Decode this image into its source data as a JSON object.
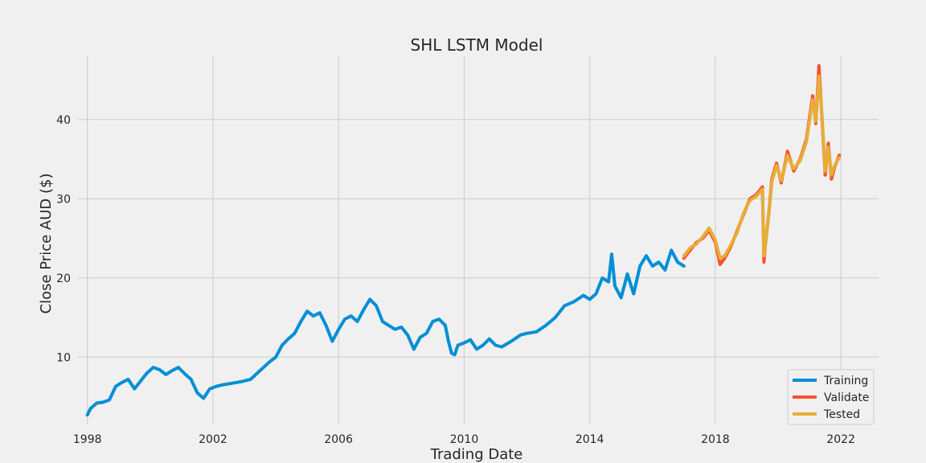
{
  "chart_data": {
    "type": "line",
    "title": "SHL LSTM Model",
    "xlabel": "Trading Date",
    "ylabel": "Close Price AUD ($)",
    "xlim": [
      1997.7,
      2023.2
    ],
    "ylim": [
      1.5,
      48.0
    ],
    "x_ticks": [
      1998,
      2002,
      2006,
      2010,
      2014,
      2018,
      2022
    ],
    "y_ticks": [
      10,
      20,
      30,
      40
    ],
    "grid": true,
    "legend": {
      "position": "bottom-right",
      "entries": [
        "Training",
        "Validate",
        "Tested"
      ]
    },
    "colors": {
      "Training": "#008fd5",
      "Validate": "#fc4f30",
      "Tested": "#e5ae38",
      "background": "#f0f0f0",
      "grid": "#cbcbcb"
    },
    "series": [
      {
        "name": "Training",
        "x": [
          1998.0,
          1998.1,
          1998.3,
          1998.5,
          1998.7,
          1998.9,
          1999.1,
          1999.3,
          1999.5,
          1999.7,
          1999.9,
          2000.1,
          2000.3,
          2000.5,
          2000.7,
          2000.9,
          2001.1,
          2001.3,
          2001.5,
          2001.7,
          2001.9,
          2002.1,
          2002.3,
          2002.6,
          2002.9,
          2003.2,
          2003.5,
          2003.8,
          2004.0,
          2004.2,
          2004.4,
          2004.6,
          2004.8,
          2005.0,
          2005.2,
          2005.4,
          2005.6,
          2005.8,
          2006.0,
          2006.2,
          2006.4,
          2006.6,
          2006.8,
          2007.0,
          2007.2,
          2007.4,
          2007.6,
          2007.8,
          2008.0,
          2008.2,
          2008.4,
          2008.6,
          2008.8,
          2009.0,
          2009.2,
          2009.4,
          2009.5,
          2009.6,
          2009.7,
          2009.8,
          2010.0,
          2010.2,
          2010.4,
          2010.6,
          2010.8,
          2011.0,
          2011.2,
          2011.5,
          2011.8,
          2012.0,
          2012.3,
          2012.6,
          2012.9,
          2013.2,
          2013.5,
          2013.8,
          2014.0,
          2014.2,
          2014.4,
          2014.6,
          2014.7,
          2014.8,
          2015.0,
          2015.2,
          2015.4,
          2015.6,
          2015.8,
          2016.0,
          2016.2,
          2016.4,
          2016.6,
          2016.8,
          2017.0
        ],
        "values": [
          2.7,
          3.5,
          4.2,
          4.3,
          4.6,
          6.3,
          6.8,
          7.2,
          6.0,
          7.0,
          8.0,
          8.7,
          8.4,
          7.8,
          8.3,
          8.7,
          7.9,
          7.2,
          5.5,
          4.8,
          6.0,
          6.3,
          6.5,
          6.7,
          6.9,
          7.2,
          8.3,
          9.4,
          10.0,
          11.5,
          12.3,
          13.0,
          14.5,
          15.8,
          15.2,
          15.6,
          14.0,
          12.0,
          13.5,
          14.8,
          15.2,
          14.5,
          16.0,
          17.3,
          16.5,
          14.5,
          14.0,
          13.5,
          13.8,
          12.8,
          11.0,
          12.5,
          13.0,
          14.5,
          14.8,
          14.0,
          12.0,
          10.5,
          10.3,
          11.5,
          11.8,
          12.2,
          11.0,
          11.5,
          12.3,
          11.5,
          11.3,
          12.0,
          12.8,
          13.0,
          13.2,
          14.0,
          15.0,
          16.5,
          17.0,
          17.8,
          17.3,
          18.0,
          20.0,
          19.5,
          23.0,
          19.0,
          17.5,
          20.5,
          18.0,
          21.5,
          22.8,
          21.5,
          22.0,
          21.0,
          23.5,
          22.0,
          21.5
        ]
      },
      {
        "name": "Validate",
        "x": [
          2017.0,
          2017.2,
          2017.4,
          2017.6,
          2017.8,
          2018.0,
          2018.15,
          2018.3,
          2018.5,
          2018.7,
          2018.9,
          2019.1,
          2019.3,
          2019.5,
          2019.55,
          2019.6,
          2019.7,
          2019.8,
          2019.95,
          2020.1,
          2020.3,
          2020.5,
          2020.7,
          2020.9,
          2021.1,
          2021.2,
          2021.3,
          2021.4,
          2021.5,
          2021.6,
          2021.7,
          2021.8,
          2021.95
        ],
        "values": [
          22.5,
          23.5,
          24.5,
          25.0,
          26.0,
          24.5,
          21.7,
          22.5,
          24.0,
          26.0,
          28.0,
          30.0,
          30.5,
          31.5,
          22.0,
          24.5,
          28.0,
          32.5,
          34.5,
          32.0,
          36.0,
          33.5,
          35.0,
          37.5,
          43.0,
          39.5,
          46.8,
          40.0,
          33.0,
          37.0,
          32.5,
          34.0,
          35.5
        ]
      },
      {
        "name": "Tested",
        "x": [
          2017.0,
          2017.2,
          2017.4,
          2017.6,
          2017.8,
          2018.0,
          2018.15,
          2018.3,
          2018.5,
          2018.7,
          2018.9,
          2019.1,
          2019.3,
          2019.5,
          2019.55,
          2019.6,
          2019.7,
          2019.8,
          2019.95,
          2020.1,
          2020.3,
          2020.5,
          2020.7,
          2020.9,
          2021.1,
          2021.2,
          2021.3,
          2021.4,
          2021.5,
          2021.6,
          2021.7,
          2021.8,
          2021.95
        ],
        "values": [
          22.8,
          23.8,
          24.3,
          25.2,
          26.3,
          24.8,
          22.5,
          22.8,
          24.2,
          25.8,
          28.2,
          29.8,
          30.3,
          31.2,
          22.8,
          24.3,
          27.8,
          32.2,
          34.2,
          32.3,
          35.5,
          33.8,
          34.8,
          37.2,
          42.5,
          39.8,
          45.5,
          40.3,
          33.5,
          36.5,
          33.0,
          34.2,
          35.2
        ]
      }
    ]
  }
}
